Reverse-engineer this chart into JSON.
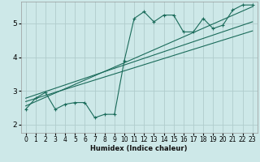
{
  "xlabel": "Humidex (Indice chaleur)",
  "bg_color": "#cde8e8",
  "grid_color": "#b0cccc",
  "line_color": "#1a6b5a",
  "xlim": [
    -0.5,
    23.5
  ],
  "ylim": [
    1.75,
    5.65
  ],
  "xticks": [
    0,
    1,
    2,
    3,
    4,
    5,
    6,
    7,
    8,
    9,
    10,
    11,
    12,
    13,
    14,
    15,
    16,
    17,
    18,
    19,
    20,
    21,
    22,
    23
  ],
  "yticks": [
    2,
    3,
    4,
    5
  ],
  "curve_x": [
    0,
    1,
    2,
    3,
    4,
    5,
    6,
    7,
    8,
    9,
    10,
    11,
    12,
    13,
    14,
    15,
    16,
    17,
    18,
    19,
    20,
    21,
    22,
    23
  ],
  "curve_y": [
    2.45,
    2.78,
    2.95,
    2.45,
    2.6,
    2.65,
    2.65,
    2.2,
    2.3,
    2.3,
    3.9,
    5.15,
    5.35,
    5.05,
    5.25,
    5.25,
    4.75,
    4.75,
    5.15,
    4.85,
    4.95,
    5.4,
    5.55,
    5.55
  ],
  "line1_x": [
    0,
    23
  ],
  "line1_y": [
    2.55,
    5.5
  ],
  "line2_x": [
    0,
    23
  ],
  "line2_y": [
    2.68,
    4.78
  ],
  "line3_x": [
    0,
    23
  ],
  "line3_y": [
    2.78,
    5.05
  ],
  "xlabel_fontsize": 6.0,
  "tick_fontsize": 5.5
}
